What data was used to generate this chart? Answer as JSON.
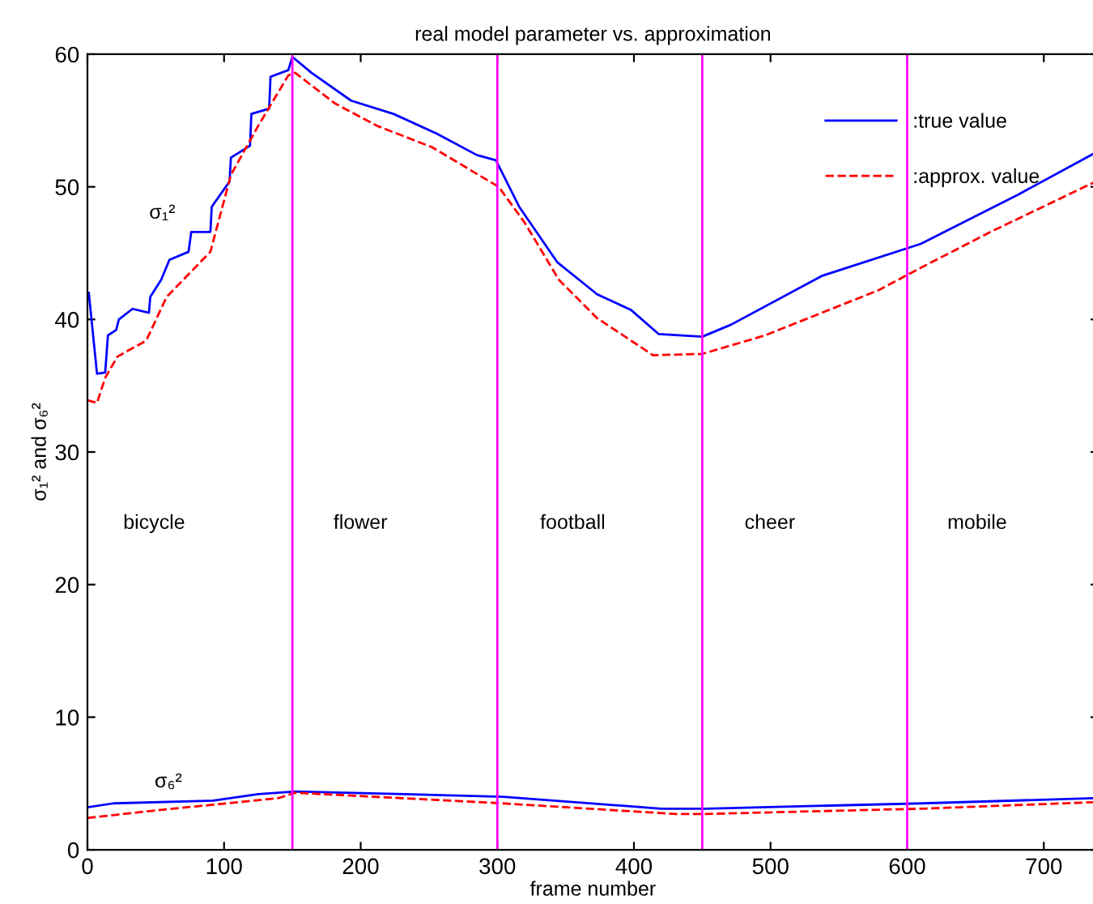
{
  "chart_data": {
    "type": "line",
    "title": "real model parameter vs. approximation",
    "xlabel": "frame number",
    "ylabel": "σ₁² and σ₆²",
    "xlim": [
      0,
      740
    ],
    "ylim": [
      0,
      60
    ],
    "xticks": [
      0,
      100,
      200,
      300,
      400,
      500,
      600,
      700
    ],
    "yticks": [
      0,
      10,
      20,
      30,
      40,
      50,
      60
    ],
    "grid": false,
    "legend": "top right",
    "series": [
      {
        "name": ":true value",
        "color": "#0000ff",
        "line_style": "solid",
        "x": [
          1,
          7,
          13,
          15,
          21,
          23,
          33,
          45,
          46,
          54,
          60,
          74,
          76,
          90,
          91,
          104,
          105,
          119,
          120,
          133,
          134,
          147,
          150,
          164,
          193,
          224,
          256,
          285,
          299,
          316,
          344,
          373,
          398,
          418,
          450,
          471,
          538,
          610,
          681,
          740
        ],
        "values": [
          42.0,
          35.9,
          36.0,
          38.8,
          39.2,
          40.0,
          40.8,
          40.5,
          41.7,
          43.0,
          44.5,
          45.1,
          46.6,
          46.6,
          48.5,
          50.4,
          52.2,
          53.1,
          55.5,
          55.9,
          58.3,
          58.8,
          59.8,
          58.6,
          56.5,
          55.5,
          54.0,
          52.4,
          52.0,
          48.5,
          44.3,
          41.9,
          40.7,
          38.9,
          38.7,
          39.6,
          43.3,
          45.7,
          49.4,
          52.7
        ]
      },
      {
        "name": ":approx. value",
        "color": "#ff0000",
        "line_style": "dashed",
        "x": [
          0,
          7,
          13,
          22,
          43,
          58,
          90,
          105,
          125,
          147,
          152,
          181,
          212,
          252,
          301,
          320,
          345,
          373,
          414,
          450,
          496,
          579,
          610,
          661,
          740
        ],
        "values": [
          33.9,
          33.7,
          35.6,
          37.2,
          38.4,
          41.7,
          45.1,
          50.9,
          54.6,
          58.4,
          58.6,
          56.3,
          54.6,
          53.0,
          50.0,
          47.3,
          43.0,
          40.1,
          37.3,
          37.4,
          38.8,
          42.2,
          43.9,
          46.6,
          50.5
        ]
      },
      {
        "color": "#0000ff",
        "line_style": "solid",
        "x": [
          0,
          19,
          92,
          125,
          152,
          304,
          420,
          452,
          611,
          740
        ],
        "values": [
          3.2,
          3.5,
          3.7,
          4.2,
          4.4,
          4.0,
          3.1,
          3.1,
          3.5,
          3.9
        ]
      },
      {
        "color": "#ff0000",
        "line_style": "dashed",
        "x": [
          0,
          44,
          140,
          152,
          304,
          430,
          452,
          611,
          740
        ],
        "values": [
          2.4,
          2.9,
          3.9,
          4.3,
          3.5,
          2.7,
          2.7,
          3.1,
          3.6
        ]
      }
    ],
    "ref_lines": [
      {
        "axis": "x",
        "value": 150,
        "color": "#ff00ff"
      },
      {
        "axis": "x",
        "value": 300,
        "color": "#ff00ff"
      },
      {
        "axis": "x",
        "value": 450,
        "color": "#ff00ff"
      },
      {
        "axis": "x",
        "value": 600,
        "color": "#ff00ff"
      }
    ],
    "annotations": [
      "σ₁²",
      "σ₆²",
      "bicycle",
      "flower",
      "football",
      "cheer",
      "mobile"
    ]
  }
}
